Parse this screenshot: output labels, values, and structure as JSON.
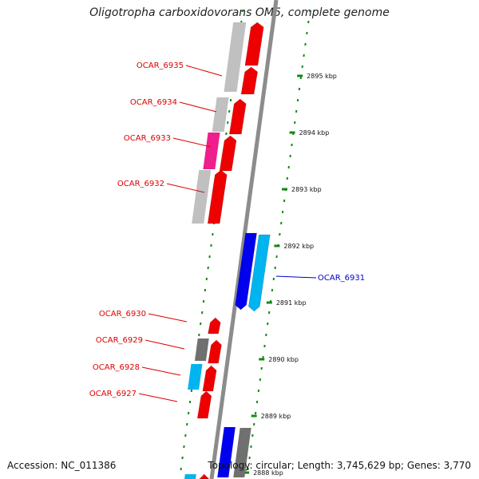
{
  "title": "Oligotropha carboxidovorans OM5, complete genome",
  "footer": {
    "accession": "Accession: NC_011386",
    "summary": "Topology: circular; Length: 3,745,629 bp; Genes: 3,770"
  },
  "ruler": {
    "unit": "kbp",
    "ticks": [
      {
        "kbp": 2895,
        "label": "2895 kbp"
      },
      {
        "kbp": 2894,
        "label": "2894 kbp"
      },
      {
        "kbp": 2893,
        "label": "2893 kbp"
      },
      {
        "kbp": 2892,
        "label": "2892 kbp"
      },
      {
        "kbp": 2891,
        "label": "2891 kbp"
      },
      {
        "kbp": 2890,
        "label": "2890 kbp"
      },
      {
        "kbp": 2889,
        "label": "2889 kbp"
      },
      {
        "kbp": 2888,
        "label": "2888 kbp"
      }
    ]
  },
  "colors": {
    "backbone": "#8c8c8c",
    "forward_cds": "#ee0000",
    "reverse_cds": "#0000ee",
    "light_blue": "#00b4f0",
    "magenta": "#ee1f8c",
    "light_gray": "#c0c0c0",
    "dark_gray": "#707070",
    "ruler_tick": "#138a13",
    "forward_label": "#dd0000",
    "reverse_label": "#0000cc"
  },
  "genes": [
    {
      "label": "OCAR_6935",
      "strand": "forward"
    },
    {
      "label": "OCAR_6934",
      "strand": "forward"
    },
    {
      "label": "OCAR_6933",
      "strand": "forward"
    },
    {
      "label": "OCAR_6932",
      "strand": "forward"
    },
    {
      "label": "OCAR_6931",
      "strand": "reverse"
    },
    {
      "label": "OCAR_6930",
      "strand": "forward"
    },
    {
      "label": "OCAR_6929",
      "strand": "forward"
    },
    {
      "label": "OCAR_6928",
      "strand": "forward"
    },
    {
      "label": "OCAR_6927",
      "strand": "forward"
    }
  ]
}
